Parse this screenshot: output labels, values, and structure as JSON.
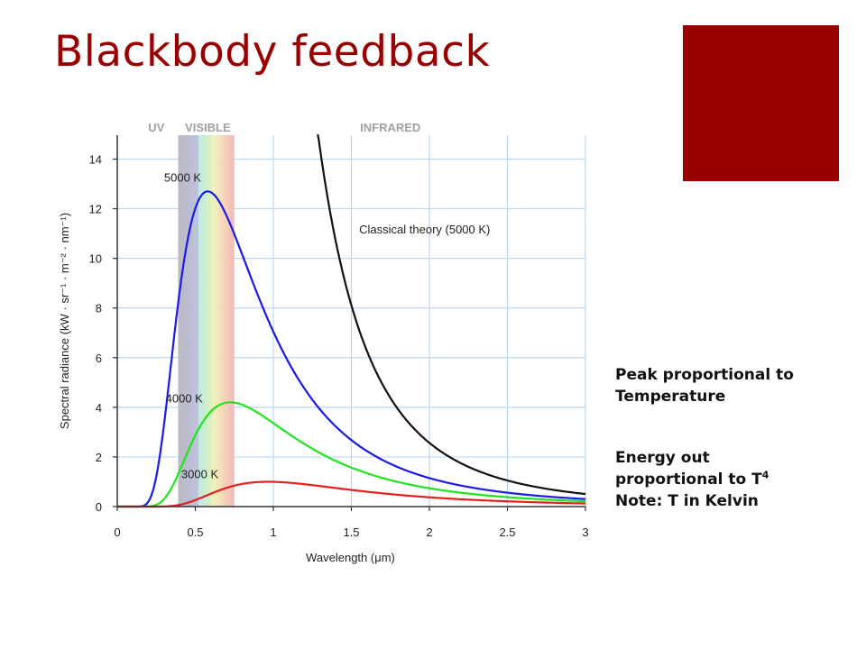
{
  "slide": {
    "title": "Blackbody feedback",
    "accent_color": "#990000",
    "notes": {
      "peak_line1": "Peak proportional to",
      "peak_line2": "Temperature",
      "energy_line1": "Energy out",
      "energy_line2_prefix": "proportional to T",
      "energy_exponent": "4",
      "energy_line3": "Note: T in Kelvin"
    }
  },
  "chart_data": {
    "type": "line",
    "title": "",
    "xlabel": "Wavelength (μm)",
    "ylabel": "Spectral radiance (kW · sr⁻¹ · m⁻² · nm⁻¹)",
    "xlim": [
      0,
      3
    ],
    "ylim": [
      0,
      15
    ],
    "x_ticks": [
      0,
      0.5,
      1,
      1.5,
      2,
      2.5,
      3
    ],
    "x_tick_labels": [
      "0",
      "0.5",
      "1",
      "1.5",
      "2",
      "2.5",
      "3"
    ],
    "y_ticks": [
      0,
      2,
      4,
      6,
      8,
      10,
      12,
      14
    ],
    "y_tick_labels": [
      "0",
      "2",
      "4",
      "6",
      "8",
      "10",
      "12",
      "14"
    ],
    "grid": true,
    "bands": [
      {
        "label": "UV",
        "label_x": 0.25
      },
      {
        "label": "VISIBLE",
        "label_x": 0.58,
        "x_start": 0.39,
        "x_end": 0.75
      },
      {
        "label": "INFRARED",
        "label_x": 1.75
      }
    ],
    "series": [
      {
        "name": "5000 K",
        "color": "#1a1ae6",
        "kind": "planck",
        "temperature_K": 5000,
        "peak_um": 0.58,
        "peak_value": 12.7,
        "label_at": [
          0.3,
          13.1
        ]
      },
      {
        "name": "4000 K",
        "color": "#1ee61e",
        "kind": "planck",
        "temperature_K": 4000,
        "peak_um": 0.72,
        "peak_value": 4.2,
        "label_at": [
          0.31,
          4.2
        ]
      },
      {
        "name": "3000 K",
        "color": "#e61e1e",
        "kind": "planck",
        "temperature_K": 3000,
        "peak_um": 0.97,
        "peak_value": 1.0,
        "label_at": [
          0.41,
          1.15
        ]
      },
      {
        "name": "Classical theory (5000 K)",
        "color": "#111111",
        "kind": "rayleigh-jeans",
        "temperature_K": 5000,
        "label_at": [
          1.55,
          11.0
        ]
      }
    ]
  }
}
